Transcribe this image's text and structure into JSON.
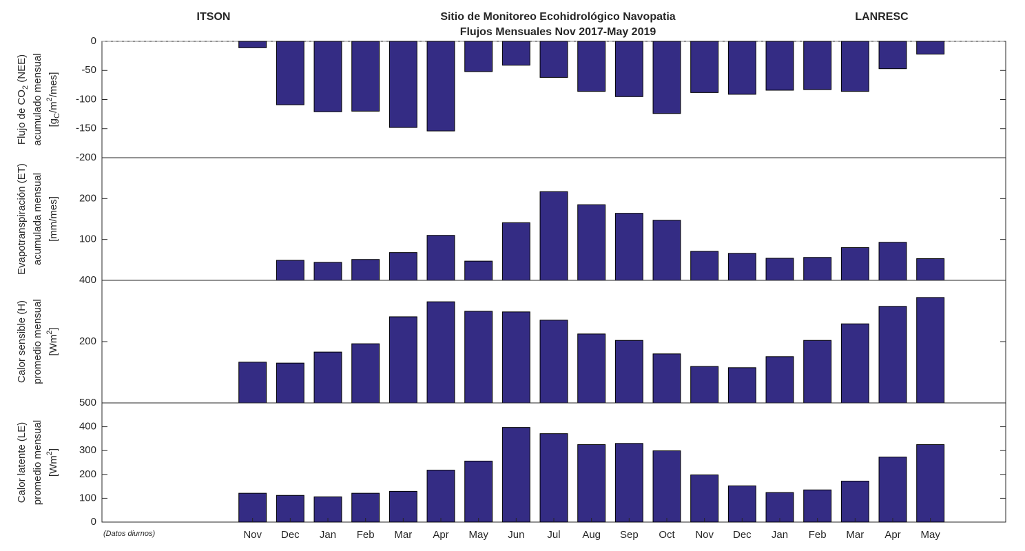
{
  "header": {
    "left": "ITSON",
    "right": "LANRESC"
  },
  "chart_data": [
    {
      "type": "bar",
      "title": [
        "Sitio de Monitoreo Ecohidrológico Navopatia",
        "Flujos Mensuales Nov 2017-May 2019"
      ],
      "ylabel": [
        [
          "Flujo de CO",
          {
            "sub": "2"
          },
          " (NEE)"
        ],
        [
          "acumulado mensual"
        ],
        [
          "[g",
          {
            "sub": "C"
          },
          "/m",
          {
            "sup": "2"
          },
          "/mes]"
        ]
      ],
      "values": [
        -11,
        -109,
        -121,
        -120,
        -148,
        -154,
        -52,
        -41,
        -62,
        -86,
        -95,
        -124,
        -88,
        -91,
        -84,
        -83,
        -86,
        -47,
        -22
      ],
      "color": "#342c84",
      "xlim": [
        -4,
        20
      ],
      "ylim": [
        -200,
        0
      ],
      "yticks": [
        0,
        -50,
        -100,
        -150,
        -200
      ],
      "zero_line": "dashed"
    },
    {
      "type": "bar",
      "ylabel": [
        [
          "Evapotranspiración (ET)"
        ],
        [
          "acumulada mensual"
        ],
        [
          "[mm/mes]"
        ]
      ],
      "values": [
        null,
        49,
        44,
        51,
        68,
        110,
        47,
        141,
        217,
        185,
        164,
        147,
        71,
        66,
        54,
        56,
        80,
        93,
        53
      ],
      "color": "#342c84",
      "xlim": [
        -4,
        20
      ],
      "ylim": [
        0,
        300
      ],
      "yticks": [
        100,
        200
      ]
    },
    {
      "type": "bar",
      "ylabel": [
        [
          "Calor sensible (H)"
        ],
        [
          "promedio mensual"
        ],
        [
          "[Wm",
          {
            "sup": "2"
          },
          "]"
        ]
      ],
      "values": [
        133,
        130,
        166,
        193,
        281,
        330,
        299,
        297,
        270,
        225,
        204,
        160,
        119,
        115,
        151,
        204,
        258,
        315,
        344
      ],
      "color": "#342c84",
      "xlim": [
        -4,
        20
      ],
      "ylim": [
        0,
        400
      ],
      "yticks": [
        200,
        400
      ]
    },
    {
      "type": "bar",
      "ylabel": [
        [
          "Calor latente (LE)"
        ],
        [
          "promedio mensual"
        ],
        [
          "[Wm",
          {
            "sup": "2"
          },
          "]"
        ]
      ],
      "categories": [
        "Nov",
        "Dec",
        "Jan",
        "Feb",
        "Mar",
        "Apr",
        "May",
        "Jun",
        "Jul",
        "Aug",
        "Sep",
        "Oct",
        "Nov",
        "Dec",
        "Jan",
        "Feb",
        "Mar",
        "Apr",
        "May"
      ],
      "values": [
        121,
        112,
        106,
        121,
        129,
        218,
        256,
        397,
        371,
        325,
        330,
        299,
        198,
        152,
        124,
        135,
        172,
        273,
        325
      ],
      "color": "#342c84",
      "xlim": [
        -4,
        20
      ],
      "ylim": [
        0,
        500
      ],
      "yticks": [
        0,
        100,
        200,
        300,
        400,
        500
      ],
      "annotation": "(Datos diurnos)"
    }
  ]
}
